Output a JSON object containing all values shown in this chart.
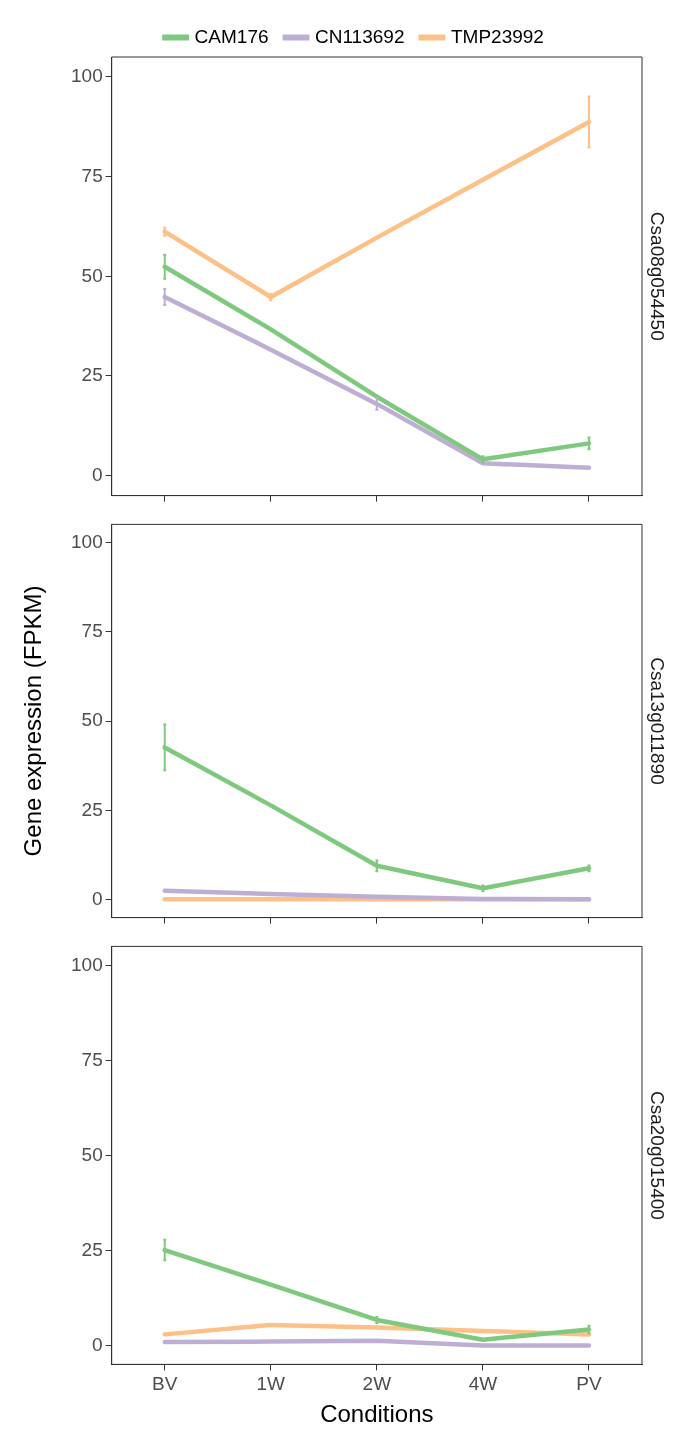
{
  "chart_data": [
    {
      "type": "line",
      "title": "Csa08g054450",
      "ylim": [
        -5,
        105
      ],
      "yticks": [
        0,
        25,
        50,
        75,
        100
      ],
      "grid": false,
      "legend": "top",
      "tick_labels": "y",
      "series": [
        {
          "name": "CAM176",
          "color": "#7fc97f",
          "values": [
            52.4,
            36.7,
            19.8,
            4.1,
            8.1
          ],
          "errors": [
            3,
            null,
            null,
            0.8,
            1.5
          ]
        },
        {
          "name": "CN113692",
          "color": "#beaed4",
          "values": [
            44.8,
            31.6,
            18,
            3.1,
            2
          ],
          "errors": [
            2,
            null,
            1.5,
            null,
            null
          ]
        },
        {
          "name": "TMP23992",
          "color": "#fdc086",
          "values": [
            61.2,
            44.8,
            59.7,
            74.2,
            88.7
          ],
          "errors": [
            1,
            0.8,
            null,
            null,
            6.4
          ]
        }
      ]
    },
    {
      "type": "line",
      "title": "Csa13g011890",
      "ylabel": "Gene expression (FPKM)",
      "ylim": [
        -5,
        105
      ],
      "yticks": [
        0,
        25,
        50,
        75,
        100
      ],
      "grid": false,
      "legend": false,
      "tick_labels": "y",
      "series": [
        {
          "color": "#7fc97f",
          "values": [
            42.6,
            26.4,
            9.5,
            3.2,
            8.8
          ],
          "errors": [
            6.4,
            null,
            1.5,
            0.8,
            0.8
          ]
        },
        {
          "color": "#beaed4",
          "values": [
            2.5,
            1.6,
            0.8,
            0.2,
            0.1
          ]
        },
        {
          "color": "#fdc086",
          "values": [
            0.1,
            0.1,
            0.1,
            0.1,
            0.1
          ]
        }
      ]
    },
    {
      "type": "line",
      "title": "Csa20g015400",
      "xlabel": "Conditions",
      "categories": [
        "BV",
        "1W",
        "2W",
        "4W",
        "PV"
      ],
      "ylim": [
        -5,
        105
      ],
      "yticks": [
        0,
        25,
        50,
        75,
        100
      ],
      "grid": false,
      "legend": false,
      "series": [
        {
          "color": "#7fc97f",
          "values": [
            25.1,
            16,
            6.7,
            1.5,
            4.2
          ],
          "errors": [
            2.7,
            null,
            0.8,
            null,
            1
          ]
        },
        {
          "color": "#beaed4",
          "values": [
            0.9,
            1,
            1.2,
            0,
            0
          ]
        },
        {
          "color": "#fdc086",
          "values": [
            2.9,
            5.4,
            4.7,
            3.8,
            2.9
          ]
        }
      ]
    }
  ]
}
